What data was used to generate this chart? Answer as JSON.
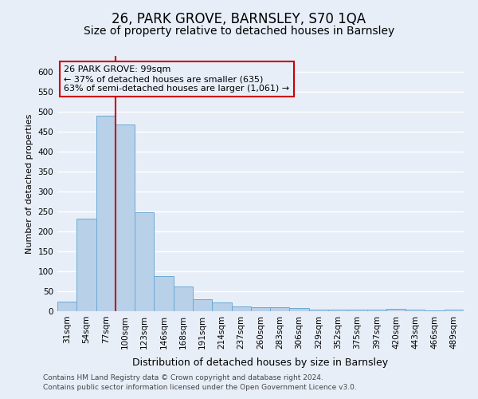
{
  "title1": "26, PARK GROVE, BARNSLEY, S70 1QA",
  "title2": "Size of property relative to detached houses in Barnsley",
  "xlabel": "Distribution of detached houses by size in Barnsley",
  "ylabel": "Number of detached properties",
  "categories": [
    "31sqm",
    "54sqm",
    "77sqm",
    "100sqm",
    "123sqm",
    "146sqm",
    "168sqm",
    "191sqm",
    "214sqm",
    "237sqm",
    "260sqm",
    "283sqm",
    "306sqm",
    "329sqm",
    "352sqm",
    "375sqm",
    "397sqm",
    "420sqm",
    "443sqm",
    "466sqm",
    "489sqm"
  ],
  "values": [
    25,
    232,
    491,
    469,
    248,
    88,
    63,
    31,
    22,
    13,
    11,
    10,
    8,
    5,
    4,
    4,
    4,
    6,
    4,
    2,
    5
  ],
  "bar_color": "#b8d0e8",
  "bar_edge_color": "#6aaad4",
  "annotation_title": "26 PARK GROVE: 99sqm",
  "annotation_line1": "← 37% of detached houses are smaller (635)",
  "annotation_line2": "63% of semi-detached houses are larger (1,061) →",
  "annotation_box_color": "#cc0000",
  "ylim_max": 640,
  "yticks": [
    0,
    50,
    100,
    150,
    200,
    250,
    300,
    350,
    400,
    450,
    500,
    550,
    600
  ],
  "footer1": "Contains HM Land Registry data © Crown copyright and database right 2024.",
  "footer2": "Contains public sector information licensed under the Open Government Licence v3.0.",
  "bg_color": "#e8eef8",
  "grid_color": "#ffffff",
  "title1_fontsize": 12,
  "title2_fontsize": 10,
  "ylabel_fontsize": 8,
  "xlabel_fontsize": 9,
  "tick_fontsize": 7.5,
  "annotation_fontsize": 8,
  "footer_fontsize": 6.5
}
